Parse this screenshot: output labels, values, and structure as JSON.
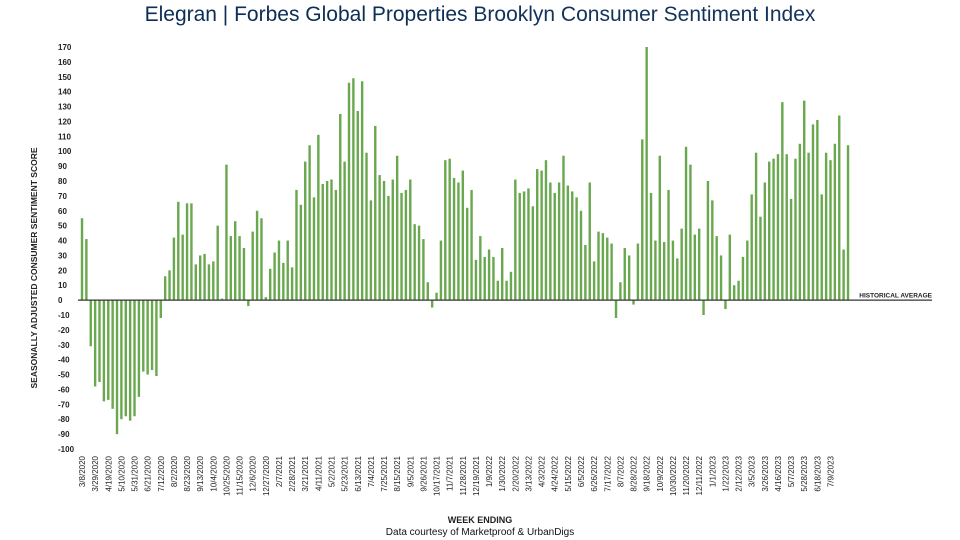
{
  "title": {
    "brand": "Elegran | Forbes Global Properties",
    "rest": "Brooklyn Consumer Sentiment Index"
  },
  "credit": "Data courtesy of Marketproof & UrbanDigs",
  "colors": {
    "bar": "#6aa84f",
    "axis": "#333333",
    "text": "#222222",
    "title": "#12335a"
  },
  "chart_data": {
    "type": "bar",
    "xlabel": "WEEK ENDING",
    "ylabel": "SEASONALLY ADJUSTED CONSUMER SENTIMENT SCORE",
    "ylim": [
      -100,
      170
    ],
    "yticks": [
      -100,
      -90,
      -80,
      -70,
      -60,
      -50,
      -40,
      -30,
      -20,
      -10,
      0,
      10,
      20,
      30,
      40,
      50,
      60,
      70,
      80,
      90,
      100,
      110,
      120,
      130,
      140,
      150,
      160,
      170
    ],
    "reference_line": {
      "value": 0,
      "label": "HISTORICAL AVERAGE"
    },
    "grid": false,
    "xtick_labels": [
      "3/8/2020",
      "3/29/2020",
      "4/19/2020",
      "5/10/2020",
      "5/31/2020",
      "6/21/2020",
      "7/12/2020",
      "8/2/2020",
      "8/23/2020",
      "9/13/2020",
      "10/4/2020",
      "10/25/2020",
      "11/15/2020",
      "12/6/2020",
      "12/27/2020",
      "2/7/2021",
      "2/28/2021",
      "3/21/2021",
      "4/11/2021",
      "5/2/2021",
      "5/23/2021",
      "6/13/2021",
      "7/4/2021",
      "7/25/2021",
      "8/15/2021",
      "9/5/2021",
      "9/26/2021",
      "10/17/2021",
      "11/7/2021",
      "11/28/2021",
      "12/19/2021",
      "1/9/2022",
      "1/30/2022",
      "2/20/2022",
      "3/13/2022",
      "4/3/2022",
      "4/24/2022",
      "5/15/2022",
      "6/5/2022",
      "6/26/2022",
      "7/17/2022",
      "8/7/2022",
      "8/28/2022",
      "9/18/2022",
      "10/9/2022",
      "10/30/2022",
      "11/20/2022",
      "12/11/2022",
      "1/1/2023",
      "1/22/2023",
      "2/12/2023",
      "3/5/2023",
      "3/26/2023",
      "4/16/2023",
      "5/7/2023",
      "5/28/2023",
      "6/18/2023",
      "7/9/2023"
    ],
    "series": [
      {
        "values": [
          55,
          41,
          -31,
          -58,
          -55,
          -68,
          -67,
          -73,
          -90,
          -80,
          -78,
          -81,
          -78,
          -65,
          -48,
          -50,
          -47,
          -51,
          -12,
          16,
          20,
          42,
          66,
          44,
          65,
          65,
          24,
          30,
          31,
          24,
          26,
          50,
          1,
          91,
          43,
          53,
          43,
          35,
          -4,
          46,
          60,
          55,
          2,
          21,
          32,
          40,
          25,
          40,
          22,
          74,
          64,
          93,
          104,
          69,
          111,
          78,
          80,
          81,
          74,
          125,
          93,
          146,
          149,
          127,
          147,
          99,
          67,
          117,
          84,
          80,
          70,
          81,
          97,
          72,
          74,
          81,
          51,
          50,
          41,
          12,
          -5,
          5,
          40,
          94,
          95,
          82,
          79,
          87,
          62,
          74,
          27,
          43,
          29,
          34,
          29,
          13,
          35,
          13,
          19,
          81,
          72,
          73,
          75,
          63,
          88,
          87,
          94,
          79,
          72,
          79,
          97,
          77,
          73,
          69,
          60,
          37,
          79,
          26,
          46,
          45,
          42,
          38,
          -12,
          12,
          35,
          30,
          -3,
          38,
          108,
          170,
          72,
          40,
          97,
          39,
          74,
          40,
          28,
          48,
          103,
          91,
          44,
          48,
          -10,
          80,
          67,
          43,
          30,
          -6,
          44,
          10,
          13,
          29,
          40,
          71,
          99,
          56,
          79,
          93,
          95,
          98,
          133,
          98,
          68,
          95,
          105,
          134,
          99,
          118,
          121,
          71,
          99,
          94,
          105,
          124,
          34,
          104
        ]
      }
    ]
  }
}
